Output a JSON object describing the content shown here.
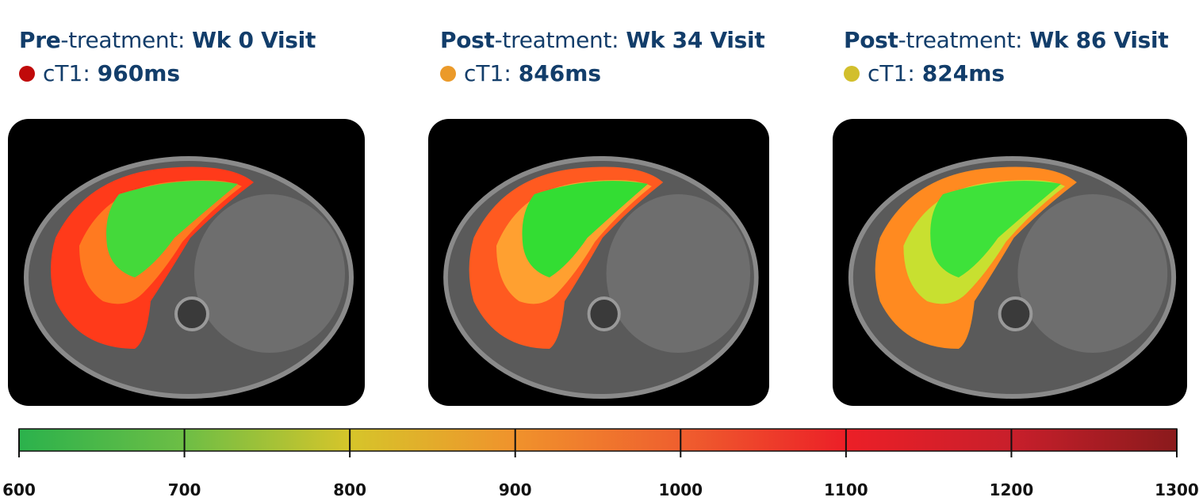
{
  "panels": [
    {
      "phase": "Pre",
      "phase_rest": "-treatment:",
      "visit": "Wk 0 Visit",
      "marker_color": "#c00a0a",
      "metric": "cT1:",
      "value": "960ms"
    },
    {
      "phase": "Post",
      "phase_rest": "-treatment:",
      "visit": "Wk 34 Visit",
      "marker_color": "#eb9a2a",
      "metric": "cT1:",
      "value": "846ms"
    },
    {
      "phase": "Post",
      "phase_rest": "-treatment:",
      "visit": "Wk 86 Visit",
      "marker_color": "#d2bf2c",
      "metric": "cT1:",
      "value": "824ms"
    }
  ],
  "colorbar": {
    "lim": [
      600,
      1300
    ],
    "ticks": [
      600,
      700,
      800,
      900,
      1000,
      1100,
      1200,
      1300
    ],
    "colors": [
      "#2bb24c",
      "#6dbe45",
      "#d6c52a",
      "#f0922c",
      "#ef5f2e",
      "#ec1f27",
      "#c81f2b",
      "#8a1a1c"
    ]
  }
}
